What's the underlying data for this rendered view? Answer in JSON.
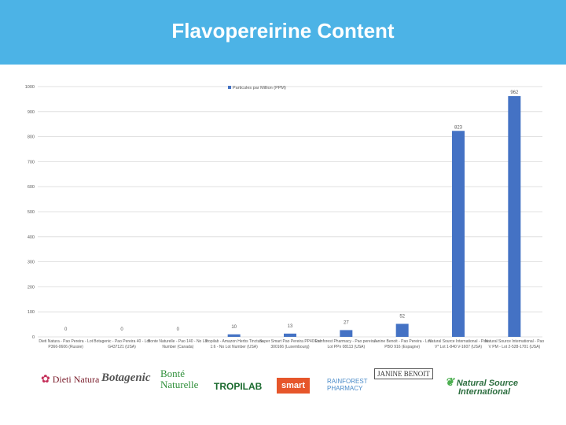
{
  "slide": {
    "title": "Flavopereirine Content",
    "header_color": "#4cb3e6"
  },
  "chart_data": {
    "type": "bar",
    "legend": {
      "label": "Particules par Million (PPM)",
      "position": "top"
    },
    "bar_color": "#4472c4",
    "ylim": [
      0,
      1000
    ],
    "yticks": [
      0,
      100,
      200,
      300,
      400,
      500,
      600,
      700,
      800,
      900,
      1000
    ],
    "grid": true,
    "categories": [
      [
        "Dieti Natura - Pao Pereira - Lot",
        "P366-0606 (Russie)"
      ],
      [
        "Botagenic - Pao Pereira 40 - Lot",
        "G437121 (USA)"
      ],
      [
        "Bonte Naturelle - Pao 140 - No Lot",
        "Number (Canada)"
      ],
      [
        "Tropilab - Amazon Herbs Tincture",
        "1:6 - No Lot Number (USA)"
      ],
      [
        "Super Smart Pao Pereira PP40 Lot",
        "300166 (Luxembourg)"
      ],
      [
        "Rainforest Pharmacy - Pao pereira -",
        "Lot PPn 08113 (USA)"
      ],
      [
        "Janine Benoit - Pao Pereira - Lot",
        "PBO 916 (Espagne)"
      ],
      [
        "Natural Source International - Pao",
        "V* Lot 1-840 V-1607 (USA)"
      ],
      [
        "Natural Source International - Pao",
        "V PM - Lot 2-528-1701 (USA)"
      ]
    ],
    "values": [
      0,
      0,
      0,
      10,
      13,
      27,
      52,
      823,
      962
    ],
    "data_labels": [
      "0",
      "0",
      "0",
      "10",
      "13",
      "27",
      "52",
      "823",
      "962"
    ]
  },
  "logos": {
    "dieti_natura": "Dieti Natura",
    "botagenic": "Botagenic",
    "bonte_1": "Bonté",
    "bonte_2": "Naturelle",
    "tropilab": "TROPILAB",
    "supersmart": "smart",
    "rainforest_1": "RAINFOREST",
    "rainforest_2": "PHARMACY",
    "janine_benoit": "JANINE BENOIT",
    "nsi_1": "Natural Source",
    "nsi_2": "International"
  }
}
